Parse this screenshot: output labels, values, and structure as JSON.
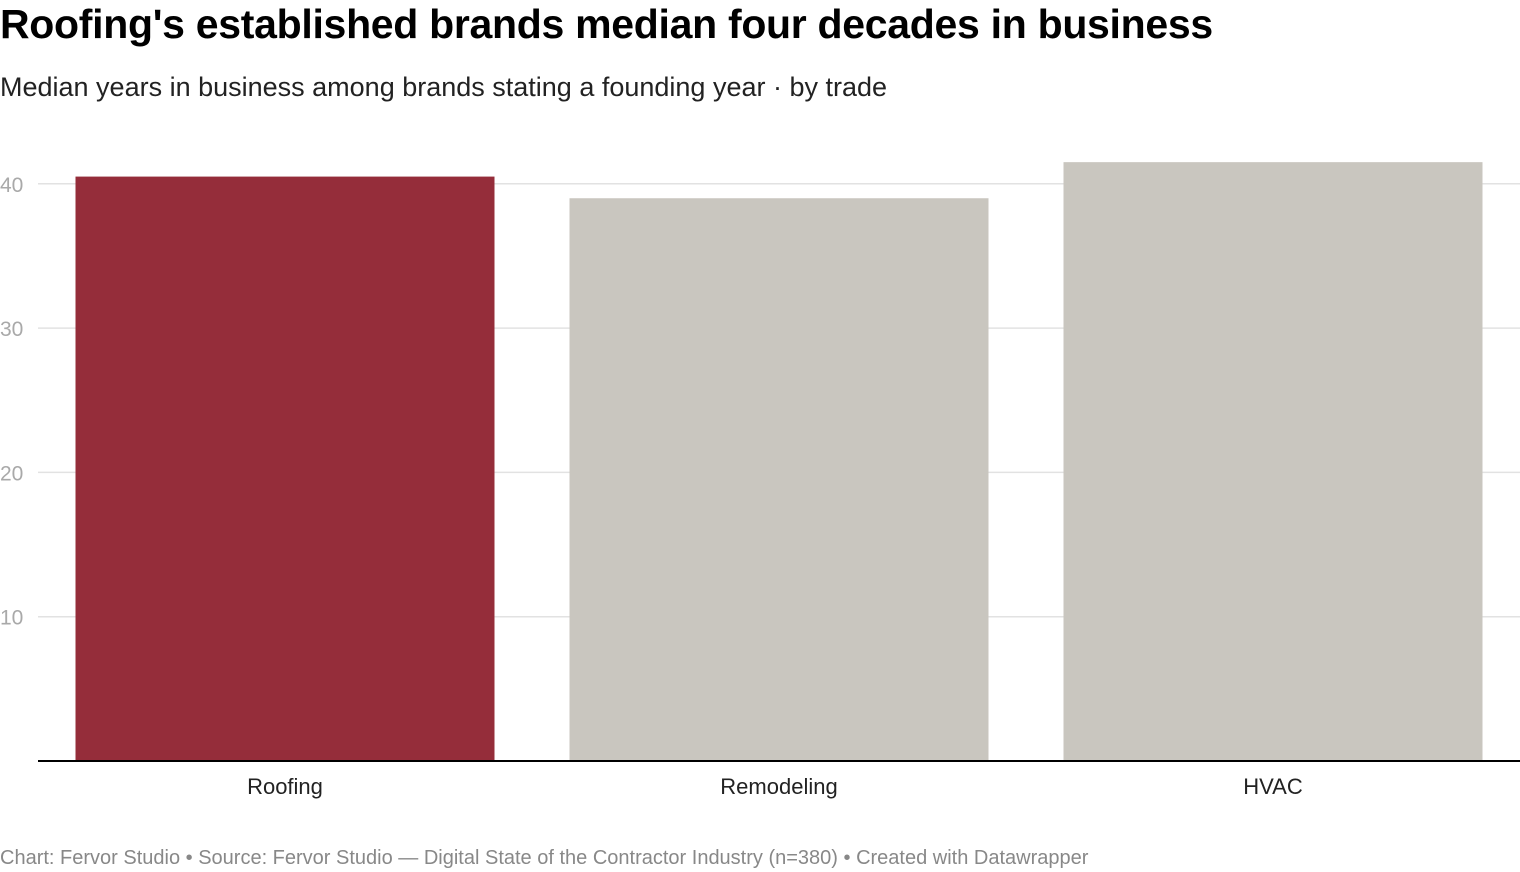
{
  "header": {
    "title": "Roofing's established brands median four decades in business",
    "subtitle": "Median years in business among brands stating a founding year · by trade"
  },
  "footer": {
    "chart_credit": "Chart: Fervor Studio",
    "separator": " • ",
    "source": "Source: Fervor Studio — Digital State of the Contractor Industry (n=380)",
    "created_with": "Created with Datawrapper"
  },
  "colors": {
    "highlight": "#952d3a",
    "default_bar": "#c9c6bf",
    "grid": "#e2e2e2",
    "axis": "#000000",
    "tick_label": "#a9a9a9",
    "category_label": "#222222"
  },
  "chart_data": {
    "type": "bar",
    "title": "Roofing's established brands median four decades in business",
    "subtitle": "Median years in business among brands stating a founding year · by trade",
    "categories": [
      "Roofing",
      "Remodeling",
      "HVAC"
    ],
    "values": [
      40.5,
      39,
      41.5
    ],
    "highlight": [
      "Roofing"
    ],
    "yticks": [
      10,
      20,
      30,
      40
    ],
    "ylim": [
      0,
      42
    ],
    "xlabel": "",
    "ylabel": "",
    "grid": true
  }
}
